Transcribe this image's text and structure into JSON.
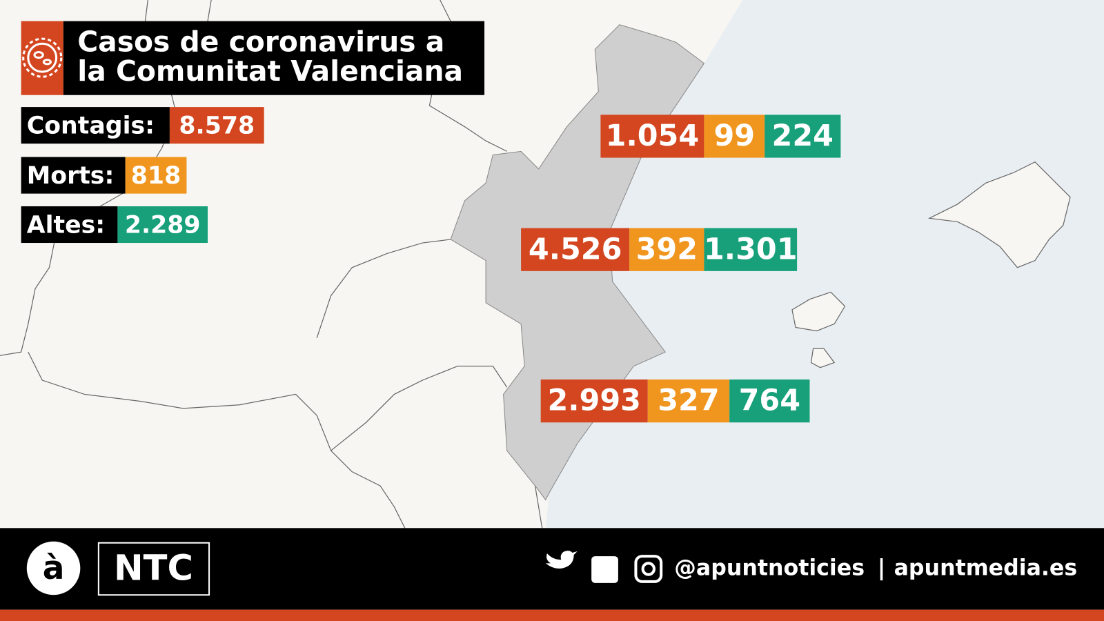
{
  "title": {
    "lines": [
      "Casos de coronavirus a",
      "la Comunitat Valenciana"
    ]
  },
  "totals": [
    {
      "label": "Contagis:",
      "value": "8.578"
    },
    {
      "label": "Morts:",
      "value": "818"
    },
    {
      "label": "Altes:",
      "value": "2.289"
    }
  ],
  "regions": [
    {
      "cases": "1.054",
      "deaths": "99",
      "recovered": "224"
    },
    {
      "cases": "4.526",
      "deaths": "392",
      "recovered": "1.301"
    },
    {
      "cases": "2.993",
      "deaths": "327",
      "recovered": "764"
    }
  ],
  "footer": {
    "logo": "à",
    "brand": "NTC",
    "handle": "@apuntnoticies",
    "separator": "|",
    "site": "apuntmedia.es"
  }
}
